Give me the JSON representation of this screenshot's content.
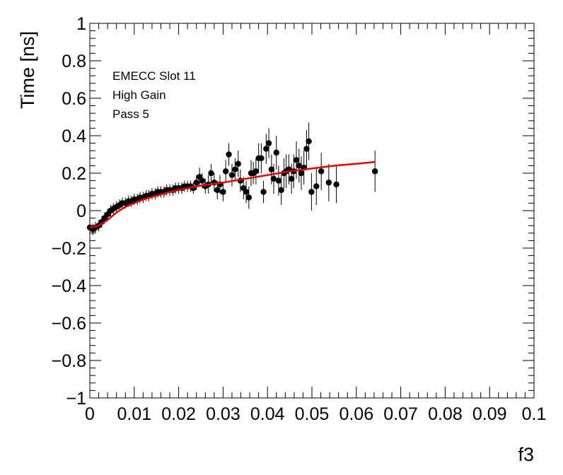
{
  "chart_data": {
    "type": "scatter",
    "title": "",
    "xlabel": "f3",
    "ylabel": "Time [ns]",
    "xlim": [
      0,
      0.1
    ],
    "ylim": [
      -1,
      1
    ],
    "grid": false,
    "x_ticks": [
      "0",
      "0.01",
      "0.02",
      "0.03",
      "0.04",
      "0.05",
      "0.06",
      "0.07",
      "0.08",
      "0.09",
      "0.1"
    ],
    "y_ticks": [
      "−1",
      "−0.8",
      "−0.6",
      "−0.4",
      "−0.2",
      "0",
      "0.2",
      "0.4",
      "0.6",
      "0.8",
      "1"
    ],
    "annotations": [
      "EMECC Slot 11",
      "High Gain",
      "Pass 5"
    ],
    "colors": {
      "points": "#000000",
      "fit": "#e00000"
    },
    "series": [
      {
        "kind": "points_with_errors",
        "x": [
          0.0,
          0.0007,
          0.0013,
          0.002,
          0.0027,
          0.0033,
          0.004,
          0.0047,
          0.0053,
          0.006,
          0.0067,
          0.0073,
          0.008,
          0.0087,
          0.0093,
          0.01,
          0.0107,
          0.0113,
          0.012,
          0.0127,
          0.0133,
          0.014,
          0.0147,
          0.0153,
          0.016,
          0.0167,
          0.0173,
          0.018,
          0.0187,
          0.0193,
          0.02,
          0.0207,
          0.0213,
          0.022,
          0.0227,
          0.0233,
          0.024,
          0.0247,
          0.0253,
          0.026,
          0.0267,
          0.0273,
          0.028,
          0.0287,
          0.0293,
          0.03,
          0.0306,
          0.0313,
          0.032,
          0.0327,
          0.0334,
          0.0339,
          0.0346,
          0.0352,
          0.0358,
          0.0363,
          0.0368,
          0.0374,
          0.038,
          0.0386,
          0.0391,
          0.0397,
          0.0403,
          0.0409,
          0.0414,
          0.042,
          0.0425,
          0.0431,
          0.0437,
          0.0442,
          0.0448,
          0.0454,
          0.0459,
          0.0465,
          0.0471,
          0.0476,
          0.0482,
          0.0488,
          0.0493,
          0.0499,
          0.051,
          0.0521,
          0.0538,
          0.0555,
          0.0642
        ],
        "y": [
          -0.09,
          -0.1,
          -0.09,
          -0.08,
          -0.06,
          -0.04,
          -0.02,
          0.0,
          0.01,
          0.02,
          0.03,
          0.04,
          0.04,
          0.05,
          0.05,
          0.06,
          0.06,
          0.07,
          0.07,
          0.08,
          0.08,
          0.09,
          0.09,
          0.1,
          0.1,
          0.1,
          0.11,
          0.11,
          0.11,
          0.12,
          0.12,
          0.12,
          0.13,
          0.13,
          0.13,
          0.12,
          0.15,
          0.18,
          0.16,
          0.13,
          0.14,
          0.2,
          0.15,
          0.11,
          0.14,
          0.1,
          0.21,
          0.3,
          0.19,
          0.22,
          0.25,
          0.16,
          0.12,
          0.1,
          0.07,
          0.2,
          0.2,
          0.21,
          0.28,
          0.28,
          0.1,
          0.33,
          0.36,
          0.22,
          0.17,
          0.31,
          0.16,
          0.11,
          0.2,
          0.21,
          0.22,
          0.17,
          0.21,
          0.27,
          0.24,
          0.2,
          0.23,
          0.33,
          0.37,
          0.1,
          0.13,
          0.21,
          0.15,
          0.14,
          0.21
        ],
        "yerr": [
          0.03,
          0.03,
          0.03,
          0.03,
          0.03,
          0.03,
          0.03,
          0.03,
          0.03,
          0.03,
          0.03,
          0.03,
          0.03,
          0.03,
          0.03,
          0.03,
          0.03,
          0.03,
          0.03,
          0.03,
          0.03,
          0.03,
          0.03,
          0.03,
          0.03,
          0.03,
          0.03,
          0.03,
          0.03,
          0.03,
          0.03,
          0.03,
          0.03,
          0.03,
          0.03,
          0.03,
          0.04,
          0.05,
          0.04,
          0.04,
          0.05,
          0.05,
          0.05,
          0.05,
          0.05,
          0.05,
          0.06,
          0.06,
          0.06,
          0.06,
          0.07,
          0.06,
          0.06,
          0.06,
          0.06,
          0.07,
          0.06,
          0.07,
          0.08,
          0.08,
          0.06,
          0.08,
          0.08,
          0.08,
          0.08,
          0.09,
          0.08,
          0.08,
          0.08,
          0.09,
          0.08,
          0.08,
          0.09,
          0.1,
          0.09,
          0.09,
          0.09,
          0.1,
          0.1,
          0.1,
          0.1,
          0.1,
          0.1,
          0.1,
          0.11
        ]
      },
      {
        "kind": "fit_line",
        "x": [
          0.0,
          0.002,
          0.004,
          0.006,
          0.008,
          0.01,
          0.012,
          0.015,
          0.018,
          0.021,
          0.024,
          0.027,
          0.03,
          0.035,
          0.04,
          0.045,
          0.05,
          0.055,
          0.06,
          0.0642
        ],
        "y": [
          -0.09,
          -0.08,
          -0.05,
          -0.01,
          0.02,
          0.04,
          0.06,
          0.08,
          0.1,
          0.115,
          0.13,
          0.14,
          0.15,
          0.17,
          0.19,
          0.21,
          0.225,
          0.24,
          0.25,
          0.26
        ]
      }
    ]
  }
}
